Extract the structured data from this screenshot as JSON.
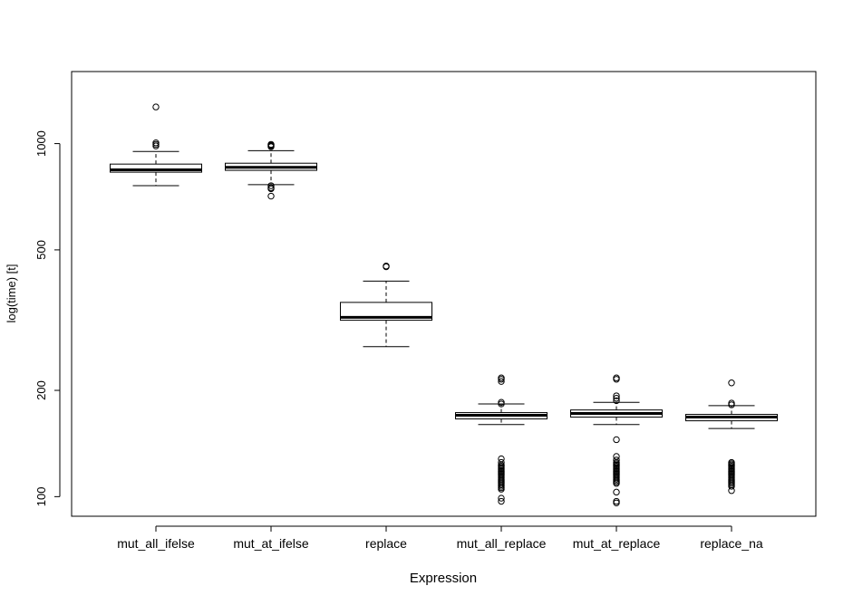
{
  "chart_data": {
    "type": "boxplot",
    "title": "",
    "xlabel": "Expression",
    "ylabel": "log(time) [t]",
    "y_scale": "log",
    "ylim": [
      88,
      1600
    ],
    "y_ticks": [
      100,
      200,
      500,
      1000
    ],
    "y_tick_labels": [
      "100",
      "200",
      "500",
      "1000"
    ],
    "grid": false,
    "categories": [
      "mut_all_ifelse",
      "mut_at_ifelse",
      "replace",
      "mut_all_replace",
      "mut_at_replace",
      "replace_na"
    ],
    "boxes": [
      {
        "name": "mut_all_ifelse",
        "whisker_low": 760,
        "q1": 830,
        "median": 843,
        "q3": 875,
        "whisker_high": 950,
        "outliers": [
          1005,
          995,
          985,
          1270
        ]
      },
      {
        "name": "mut_at_ifelse",
        "whisker_low": 765,
        "q1": 840,
        "median": 857,
        "q3": 880,
        "whisker_high": 955,
        "outliers": [
          995,
          990,
          985,
          980,
          760,
          750,
          745,
          710
        ]
      },
      {
        "name": "replace",
        "whisker_low": 266,
        "q1": 316,
        "median": 322,
        "q3": 355,
        "whisker_high": 408,
        "outliers": [
          450,
          448
        ]
      },
      {
        "name": "mut_all_replace",
        "whisker_low": 160,
        "q1": 166,
        "median": 170,
        "q3": 173,
        "whisker_high": 183,
        "outliers": [
          185,
          183,
          212,
          215,
          217,
          128,
          125,
          123,
          122,
          121,
          120,
          119,
          118,
          117,
          116,
          115,
          114,
          113,
          112,
          111,
          110,
          109,
          108,
          107,
          106,
          105,
          99,
          97
        ]
      },
      {
        "name": "mut_at_replace",
        "whisker_low": 160,
        "q1": 168,
        "median": 172,
        "q3": 176,
        "whisker_high": 185,
        "outliers": [
          187,
          190,
          193,
          215,
          217,
          145,
          130,
          127,
          125,
          124,
          123,
          122,
          121,
          120,
          119,
          118,
          117,
          116,
          115,
          114,
          113,
          112,
          111,
          110,
          109,
          103,
          97,
          96
        ]
      },
      {
        "name": "replace_na",
        "whisker_low": 156,
        "q1": 164,
        "median": 168,
        "q3": 171,
        "whisker_high": 181,
        "outliers": [
          182,
          184,
          210,
          125,
          124,
          123,
          122,
          121,
          120,
          119,
          118,
          117,
          116,
          115,
          114,
          113,
          112,
          111,
          110,
          109,
          108,
          107,
          104
        ]
      }
    ]
  }
}
